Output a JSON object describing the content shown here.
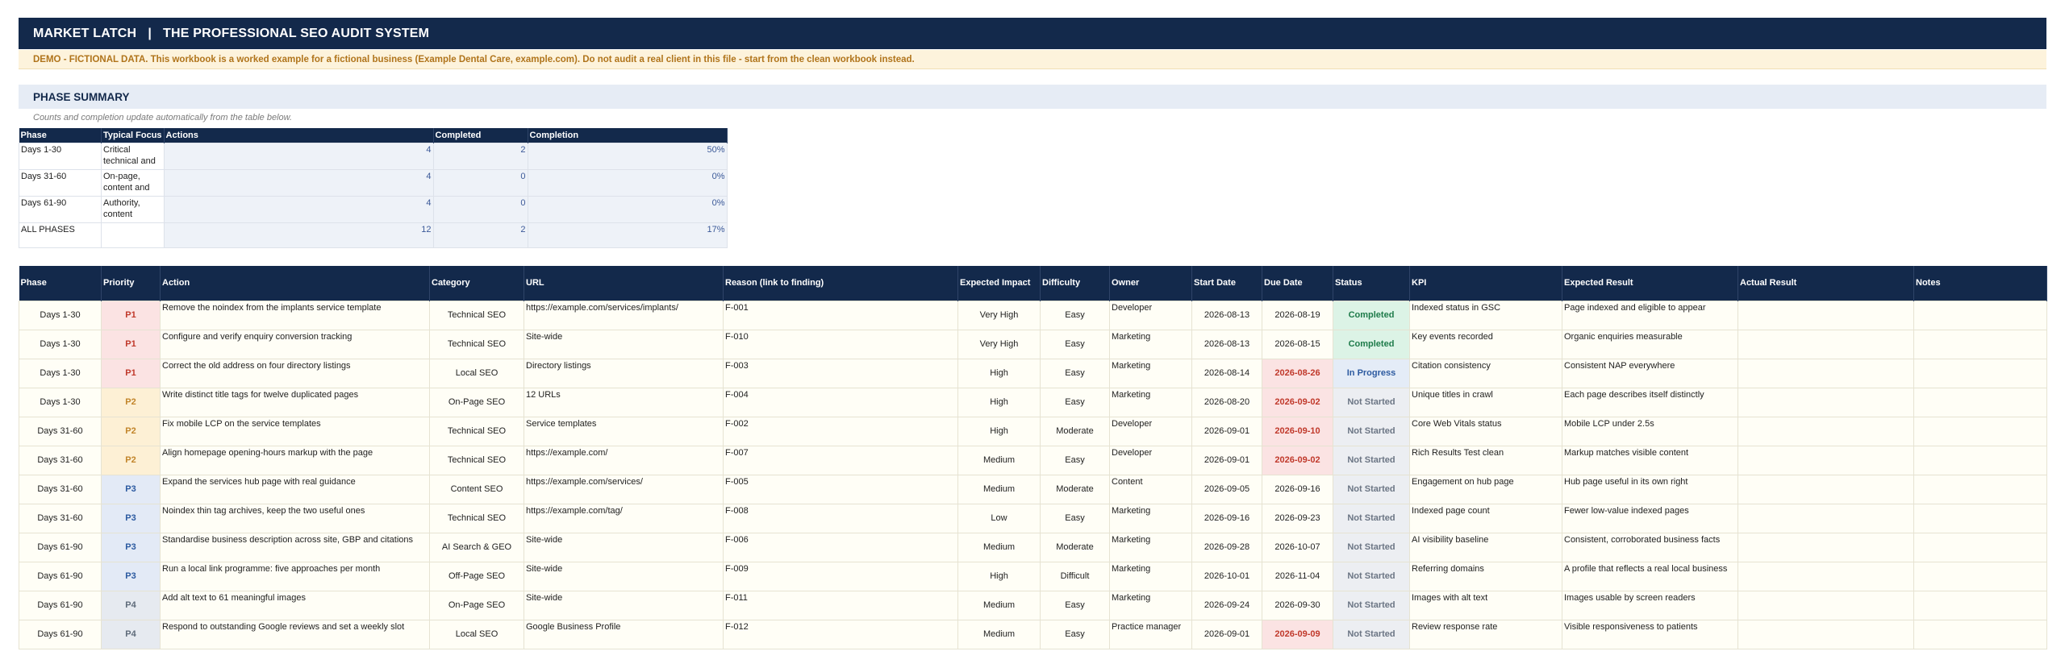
{
  "header": {
    "brand": "MARKET LATCH",
    "separator": "|",
    "subtitle": "THE PROFESSIONAL SEO AUDIT SYSTEM"
  },
  "demo_notice": "DEMO - FICTIONAL DATA. This workbook is a worked example for a fictional business (Example Dental Care, example.com). Do not audit a real client in this file - start from the clean workbook instead.",
  "phase_summary": {
    "title": "PHASE SUMMARY",
    "note": "Counts and completion update automatically from the table below.",
    "columns": [
      "Phase",
      "Typical Focus",
      "Actions",
      "Completed",
      "Completion"
    ],
    "rows": [
      {
        "phase": "Days 1-30",
        "focus": "Critical technical and",
        "actions": "4",
        "completed": "2",
        "completion": "50%"
      },
      {
        "phase": "Days 31-60",
        "focus": "On-page, content and",
        "actions": "4",
        "completed": "0",
        "completion": "0%"
      },
      {
        "phase": "Days 61-90",
        "focus": "Authority, content",
        "actions": "4",
        "completed": "0",
        "completion": "0%"
      },
      {
        "phase": "ALL PHASES",
        "focus": "",
        "actions": "12",
        "completed": "2",
        "completion": "17%"
      }
    ]
  },
  "action_table": {
    "columns": [
      "Phase",
      "Priority",
      "Action",
      "Category",
      "URL",
      "Reason (link to finding)",
      "Expected Impact",
      "Difficulty",
      "Owner",
      "Start Date",
      "Due Date",
      "Status",
      "KPI",
      "Expected Result",
      "Actual Result",
      "Notes"
    ],
    "rows": [
      {
        "phase": "Days 1-30",
        "priority": "P1",
        "action": "Remove the noindex from the implants service template",
        "category": "Technical SEO",
        "url": "https://example.com/services/implants/",
        "reason": "F-001",
        "impact": "Very High",
        "difficulty": "Easy",
        "owner": "Developer",
        "start": "2026-08-13",
        "due": "2026-08-19",
        "overdue": false,
        "status": "Completed",
        "kpi": "Indexed status in GSC",
        "expected": "Page indexed and eligible to appear",
        "actual": "",
        "notes": ""
      },
      {
        "phase": "Days 1-30",
        "priority": "P1",
        "action": "Configure and verify enquiry conversion tracking",
        "category": "Technical SEO",
        "url": "Site-wide",
        "reason": "F-010",
        "impact": "Very High",
        "difficulty": "Easy",
        "owner": "Marketing",
        "start": "2026-08-13",
        "due": "2026-08-15",
        "overdue": false,
        "status": "Completed",
        "kpi": "Key events recorded",
        "expected": "Organic enquiries measurable",
        "actual": "",
        "notes": ""
      },
      {
        "phase": "Days 1-30",
        "priority": "P1",
        "action": "Correct the old address on four directory listings",
        "category": "Local SEO",
        "url": "Directory listings",
        "reason": "F-003",
        "impact": "High",
        "difficulty": "Easy",
        "owner": "Marketing",
        "start": "2026-08-14",
        "due": "2026-08-26",
        "overdue": true,
        "status": "In Progress",
        "kpi": "Citation consistency",
        "expected": "Consistent NAP everywhere",
        "actual": "",
        "notes": ""
      },
      {
        "phase": "Days 1-30",
        "priority": "P2",
        "action": "Write distinct title tags for twelve duplicated pages",
        "category": "On-Page SEO",
        "url": "12 URLs",
        "reason": "F-004",
        "impact": "High",
        "difficulty": "Easy",
        "owner": "Marketing",
        "start": "2026-08-20",
        "due": "2026-09-02",
        "overdue": true,
        "status": "Not Started",
        "kpi": "Unique titles in crawl",
        "expected": "Each page describes itself distinctly",
        "actual": "",
        "notes": ""
      },
      {
        "phase": "Days 31-60",
        "priority": "P2",
        "action": "Fix mobile LCP on the service templates",
        "category": "Technical SEO",
        "url": "Service templates",
        "reason": "F-002",
        "impact": "High",
        "difficulty": "Moderate",
        "owner": "Developer",
        "start": "2026-09-01",
        "due": "2026-09-10",
        "overdue": true,
        "status": "Not Started",
        "kpi": "Core Web Vitals status",
        "expected": "Mobile LCP under 2.5s",
        "actual": "",
        "notes": ""
      },
      {
        "phase": "Days 31-60",
        "priority": "P2",
        "action": "Align homepage opening-hours markup with the page",
        "category": "Technical SEO",
        "url": "https://example.com/",
        "reason": "F-007",
        "impact": "Medium",
        "difficulty": "Easy",
        "owner": "Developer",
        "start": "2026-09-01",
        "due": "2026-09-02",
        "overdue": true,
        "status": "Not Started",
        "kpi": "Rich Results Test clean",
        "expected": "Markup matches visible content",
        "actual": "",
        "notes": ""
      },
      {
        "phase": "Days 31-60",
        "priority": "P3",
        "action": "Expand the services hub page with real guidance",
        "category": "Content SEO",
        "url": "https://example.com/services/",
        "reason": "F-005",
        "impact": "Medium",
        "difficulty": "Moderate",
        "owner": "Content",
        "start": "2026-09-05",
        "due": "2026-09-16",
        "overdue": false,
        "status": "Not Started",
        "kpi": "Engagement on hub page",
        "expected": "Hub page useful in its own right",
        "actual": "",
        "notes": ""
      },
      {
        "phase": "Days 31-60",
        "priority": "P3",
        "action": "Noindex thin tag archives, keep the two useful ones",
        "category": "Technical SEO",
        "url": "https://example.com/tag/",
        "reason": "F-008",
        "impact": "Low",
        "difficulty": "Easy",
        "owner": "Marketing",
        "start": "2026-09-16",
        "due": "2026-09-23",
        "overdue": false,
        "status": "Not Started",
        "kpi": "Indexed page count",
        "expected": "Fewer low-value indexed pages",
        "actual": "",
        "notes": ""
      },
      {
        "phase": "Days 61-90",
        "priority": "P3",
        "action": "Standardise business description across site, GBP and citations",
        "category": "AI Search & GEO",
        "url": "Site-wide",
        "reason": "F-006",
        "impact": "Medium",
        "difficulty": "Moderate",
        "owner": "Marketing",
        "start": "2026-09-28",
        "due": "2026-10-07",
        "overdue": false,
        "status": "Not Started",
        "kpi": "AI visibility baseline",
        "expected": "Consistent, corroborated business facts",
        "actual": "",
        "notes": ""
      },
      {
        "phase": "Days 61-90",
        "priority": "P3",
        "action": "Run a local link programme: five approaches per month",
        "category": "Off-Page SEO",
        "url": "Site-wide",
        "reason": "F-009",
        "impact": "High",
        "difficulty": "Difficult",
        "owner": "Marketing",
        "start": "2026-10-01",
        "due": "2026-11-04",
        "overdue": false,
        "status": "Not Started",
        "kpi": "Referring domains",
        "expected": "A profile that reflects a real local business",
        "actual": "",
        "notes": ""
      },
      {
        "phase": "Days 61-90",
        "priority": "P4",
        "action": "Add alt text to 61 meaningful images",
        "category": "On-Page SEO",
        "url": "Site-wide",
        "reason": "F-011",
        "impact": "Medium",
        "difficulty": "Easy",
        "owner": "Marketing",
        "start": "2026-09-24",
        "due": "2026-09-30",
        "overdue": false,
        "status": "Not Started",
        "kpi": "Images with alt text",
        "expected": "Images usable by screen readers",
        "actual": "",
        "notes": ""
      },
      {
        "phase": "Days 61-90",
        "priority": "P4",
        "action": "Respond to outstanding Google reviews and set a weekly slot",
        "category": "Local SEO",
        "url": "Google Business Profile",
        "reason": "F-012",
        "impact": "Medium",
        "difficulty": "Easy",
        "owner": "Practice manager",
        "start": "2026-09-01",
        "due": "2026-09-09",
        "overdue": true,
        "status": "Not Started",
        "kpi": "Review response rate",
        "expected": "Visible responsiveness to patients",
        "actual": "",
        "notes": ""
      }
    ]
  }
}
